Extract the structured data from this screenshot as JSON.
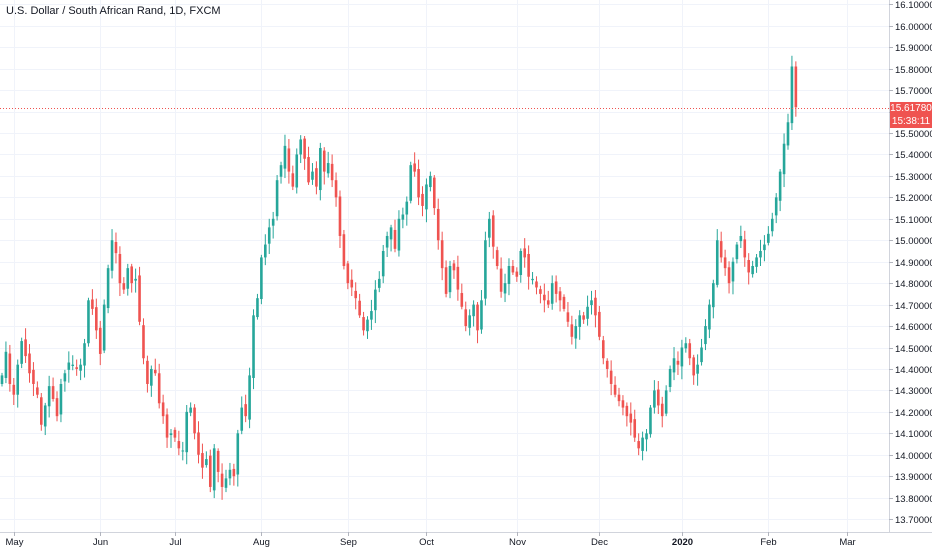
{
  "chart_title": "U.S. Dollar / South African Rand, 1D, FXCM",
  "last_price_label": "15.61780",
  "countdown_label": "15:38:11",
  "colors": {
    "up": "#26a69a",
    "down": "#ef5350",
    "grid": "#f0f3fa",
    "axis_text": "#131722",
    "price_line": "#ef5350"
  },
  "chart_data": {
    "type": "candlestick",
    "title": "U.S. Dollar / South African Rand, 1D, FXCM",
    "ylim": [
      13.64,
      16.12
    ],
    "yticks": [
      "13.70000",
      "13.80000",
      "13.90000",
      "14.00000",
      "14.10000",
      "14.20000",
      "14.30000",
      "14.40000",
      "14.50000",
      "14.60000",
      "14.70000",
      "14.80000",
      "14.90000",
      "15.00000",
      "15.10000",
      "15.20000",
      "15.30000",
      "15.40000",
      "15.50000",
      "15.60000",
      "15.70000",
      "15.80000",
      "15.90000",
      "16.00000",
      "16.10000"
    ],
    "xticks": [
      {
        "label": "May",
        "index": 3,
        "bold": false
      },
      {
        "label": "Jun",
        "index": 25,
        "bold": false
      },
      {
        "label": "Jul",
        "index": 44,
        "bold": false
      },
      {
        "label": "Aug",
        "index": 66,
        "bold": false
      },
      {
        "label": "Sep",
        "index": 88,
        "bold": false
      },
      {
        "label": "Oct",
        "index": 108,
        "bold": false
      },
      {
        "label": "Nov",
        "index": 131,
        "bold": false
      },
      {
        "label": "Dec",
        "index": 152,
        "bold": false
      },
      {
        "label": "2020",
        "index": 173,
        "bold": true
      },
      {
        "label": "Feb",
        "index": 195,
        "bold": false
      },
      {
        "label": "Mar",
        "index": 215,
        "bold": false
      }
    ],
    "grid": true,
    "last_price": 15.6178,
    "closes": [
      14.37,
      14.48,
      14.33,
      14.28,
      14.42,
      14.53,
      14.46,
      14.38,
      14.33,
      14.28,
      14.14,
      14.23,
      14.32,
      14.26,
      14.18,
      14.33,
      14.38,
      14.43,
      14.42,
      14.4,
      14.42,
      14.52,
      14.72,
      14.68,
      14.58,
      14.47,
      14.7,
      14.87,
      15.0,
      14.94,
      14.8,
      14.77,
      14.87,
      14.8,
      14.82,
      14.62,
      14.45,
      14.33,
      14.4,
      14.38,
      14.24,
      14.18,
      14.08,
      14.1,
      14.08,
      14.03,
      14.02,
      14.2,
      14.22,
      14.1,
      14.0,
      13.94,
      13.98,
      13.85,
      14.03,
      13.92,
      13.85,
      13.89,
      13.93,
      13.9,
      14.1,
      14.22,
      14.18,
      14.37,
      14.65,
      14.73,
      14.92,
      14.98,
      15.06,
      15.1,
      15.28,
      15.35,
      15.44,
      15.32,
      15.25,
      15.4,
      15.47,
      15.38,
      15.27,
      15.32,
      15.25,
      15.43,
      15.32,
      15.36,
      15.28,
      15.2,
      15.02,
      14.88,
      14.8,
      14.78,
      14.73,
      14.65,
      14.58,
      14.63,
      14.67,
      14.77,
      14.82,
      14.95,
      15.02,
      15.06,
      14.96,
      15.1,
      15.12,
      15.18,
      15.35,
      15.32,
      15.2,
      15.16,
      15.26,
      15.3,
      15.15,
      15.0,
      14.87,
      14.75,
      14.88,
      14.86,
      14.77,
      14.69,
      14.6,
      14.65,
      14.7,
      14.58,
      14.72,
      15.0,
      15.1,
      14.97,
      14.88,
      14.76,
      14.8,
      14.88,
      14.85,
      14.83,
      14.95,
      14.92,
      14.83,
      14.82,
      14.78,
      14.75,
      14.72,
      14.7,
      14.8,
      14.75,
      14.72,
      14.68,
      14.62,
      14.55,
      14.6,
      14.65,
      14.63,
      14.69,
      14.72,
      14.65,
      14.55,
      14.45,
      14.4,
      14.33,
      14.28,
      14.25,
      14.22,
      14.18,
      14.15,
      14.08,
      14.03,
      14.08,
      14.1,
      14.22,
      14.3,
      14.23,
      14.18,
      14.3,
      14.4,
      14.45,
      14.42,
      14.5,
      14.52,
      14.45,
      14.37,
      14.42,
      14.5,
      14.6,
      14.7,
      14.8,
      15.0,
      14.92,
      14.87,
      14.8,
      14.9,
      14.98,
      15.02,
      14.92,
      14.85,
      14.88,
      14.92,
      14.95,
      14.98,
      15.03,
      15.1,
      15.2,
      15.32,
      15.45,
      15.55,
      15.81,
      15.62
    ]
  }
}
